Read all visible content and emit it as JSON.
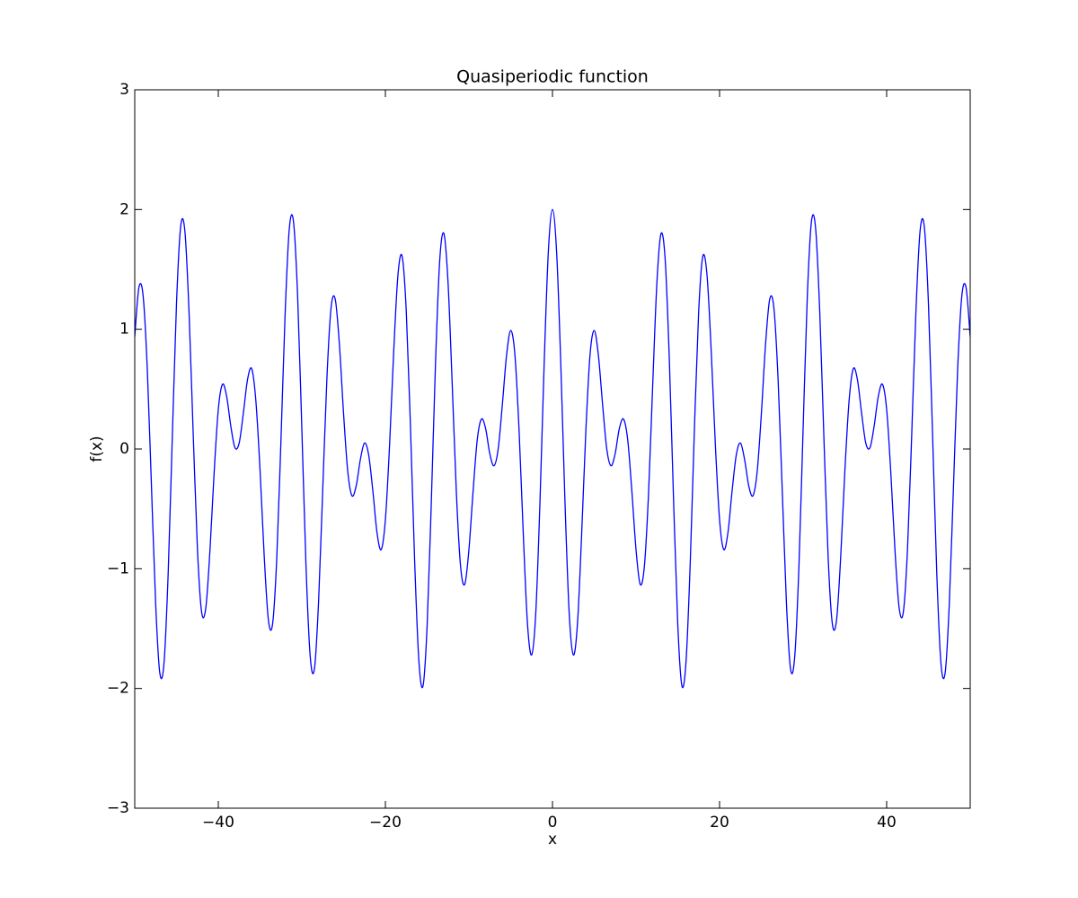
{
  "chart_data": {
    "type": "line",
    "title": "Quasiperiodic function",
    "xlabel": "x",
    "ylabel": "f(x)",
    "color": "#0000ff",
    "xlim": [
      -50,
      50
    ],
    "ylim": [
      -3,
      3
    ],
    "xticks": [
      {
        "value": -40,
        "label": "−40"
      },
      {
        "value": -20,
        "label": "−20"
      },
      0,
      20,
      40
    ],
    "yticks": [
      {
        "value": -3,
        "label": "−3"
      },
      {
        "value": -2,
        "label": "−2"
      },
      {
        "value": -1,
        "label": "−1"
      },
      0,
      1,
      2,
      3
    ],
    "x": [
      -50,
      -49.5,
      -49,
      -48.5,
      -48,
      -47.5,
      -47,
      -46.5,
      -46,
      -45.5,
      -45,
      -44.5,
      -44,
      -43.5,
      -43,
      -42.5,
      -42,
      -41.5,
      -41,
      -40.5,
      -40,
      -39.5,
      -39,
      -38.5,
      -38,
      -37.5,
      -37,
      -36.5,
      -36,
      -35.5,
      -35,
      -34.5,
      -34,
      -33.5,
      -33,
      -32.5,
      -32,
      -31.5,
      -31,
      -30.5,
      -30,
      -29.5,
      -29,
      -28.5,
      -28,
      -27.5,
      -27,
      -26.5,
      -26,
      -25.5,
      -25,
      -24.5,
      -24,
      -23.5,
      -23,
      -22.5,
      -22,
      -21.5,
      -21,
      -20.5,
      -20,
      -19.5,
      -19,
      -18.5,
      -18,
      -17.5,
      -17,
      -16.5,
      -16,
      -15.5,
      -15,
      -14.5,
      -14,
      -13.5,
      -13,
      -12.5,
      -12,
      -11.5,
      -11,
      -10.5,
      -10,
      -9.5,
      -9,
      -8.5,
      -8,
      -7.5,
      -7,
      -6.5,
      -6,
      -5.5,
      -5,
      -4.5,
      -4,
      -3.5,
      -3,
      -2.5,
      -2,
      -1.5,
      -1,
      -0.5,
      0,
      0.5,
      1,
      1.5,
      2,
      2.5,
      3,
      3.5,
      4,
      4.5,
      5,
      5.5,
      6,
      6.5,
      7,
      7.5,
      8,
      8.5,
      9,
      9.5,
      10,
      10.5,
      11,
      11.5,
      12,
      12.5,
      13,
      13.5,
      14,
      14.5,
      15,
      15.5,
      16,
      16.5,
      17,
      17.5,
      18,
      18.5,
      19,
      19.5,
      20,
      20.5,
      21,
      21.5,
      22,
      22.5,
      23,
      23.5,
      24,
      24.5,
      25,
      25.5,
      26,
      26.5,
      27,
      27.5,
      28,
      28.5,
      29,
      29.5,
      30,
      30.5,
      31,
      31.5,
      32,
      32.5,
      33,
      33.5,
      34,
      34.5,
      35,
      35.5,
      36,
      36.5,
      37,
      37.5,
      38,
      38.5,
      39,
      39.5,
      40,
      40.5,
      41,
      41.5,
      42,
      42.5,
      43,
      43.5,
      44,
      44.5,
      45,
      45.5,
      46,
      46.5,
      47,
      47.5,
      48,
      48.5,
      49,
      49.5,
      50
    ],
    "values": [
      0.94,
      1.35,
      1.28,
      0.67,
      -0.31,
      -1.29,
      -1.87,
      -1.79,
      -1.04,
      0.11,
      1.22,
      1.86,
      1.82,
      1.14,
      0.12,
      -0.83,
      -1.36,
      -1.33,
      -0.85,
      -0.2,
      0.33,
      0.54,
      0.44,
      0.19,
      0.01,
      0.05,
      0.3,
      0.58,
      0.67,
      0.4,
      -0.18,
      -0.9,
      -1.43,
      -1.46,
      -0.91,
      0.07,
      1.13,
      1.84,
      1.9,
      1.27,
      0.17,
      -0.98,
      -1.73,
      -1.84,
      -1.28,
      -0.34,
      0.59,
      1.18,
      1.25,
      0.87,
      0.29,
      -0.19,
      -0.39,
      -0.31,
      -0.09,
      0.05,
      -0.05,
      -0.35,
      -0.7,
      -0.84,
      -0.59,
      0.03,
      0.82,
      1.45,
      1.61,
      1.15,
      0.19,
      -0.93,
      -1.76,
      -1.98,
      -1.47,
      -0.44,
      0.72,
      1.57,
      1.8,
      1.39,
      0.54,
      -0.37,
      -0.98,
      -1.13,
      -0.84,
      -0.35,
      0.08,
      0.25,
      0.17,
      -0.04,
      -0.14,
      0,
      0.37,
      0.78,
      0.99,
      0.79,
      0.16,
      -0.7,
      -1.45,
      -1.72,
      -1.37,
      -0.45,
      0.7,
      1.64,
      2.0,
      1.64,
      0.7,
      -0.45,
      -1.37,
      -1.72,
      -1.45,
      -0.7,
      0.16,
      0.79,
      0.99,
      0.78,
      0.37,
      0,
      -0.14,
      -0.04,
      0.17,
      0.25,
      0.08,
      -0.35,
      -0.84,
      -1.13,
      -0.98,
      -0.37,
      0.54,
      1.39,
      1.8,
      1.57,
      0.72,
      -0.44,
      -1.47,
      -1.98,
      -1.76,
      -0.93,
      0.19,
      1.15,
      1.61,
      1.45,
      0.82,
      0.03,
      -0.59,
      -0.84,
      -0.7,
      -0.35,
      -0.05,
      0.05,
      -0.09,
      -0.31,
      -0.39,
      -0.19,
      0.29,
      0.87,
      1.25,
      1.18,
      0.59,
      -0.34,
      -1.28,
      -1.84,
      -1.73,
      -0.98,
      0.17,
      1.27,
      1.9,
      1.84,
      1.13,
      0.07,
      -0.91,
      -1.46,
      -1.43,
      -0.9,
      -0.18,
      0.4,
      0.67,
      0.58,
      0.3,
      0.05,
      0.01,
      0.19,
      0.44,
      0.54,
      0.33,
      -0.2,
      -0.85,
      -1.33,
      -1.36,
      -0.83,
      0.12,
      1.14,
      1.82,
      1.86,
      1.22,
      0.11,
      -1.04,
      -1.79,
      -1.87,
      -1.29,
      -0.31,
      0.67,
      1.28,
      1.35,
      0.94
    ]
  }
}
